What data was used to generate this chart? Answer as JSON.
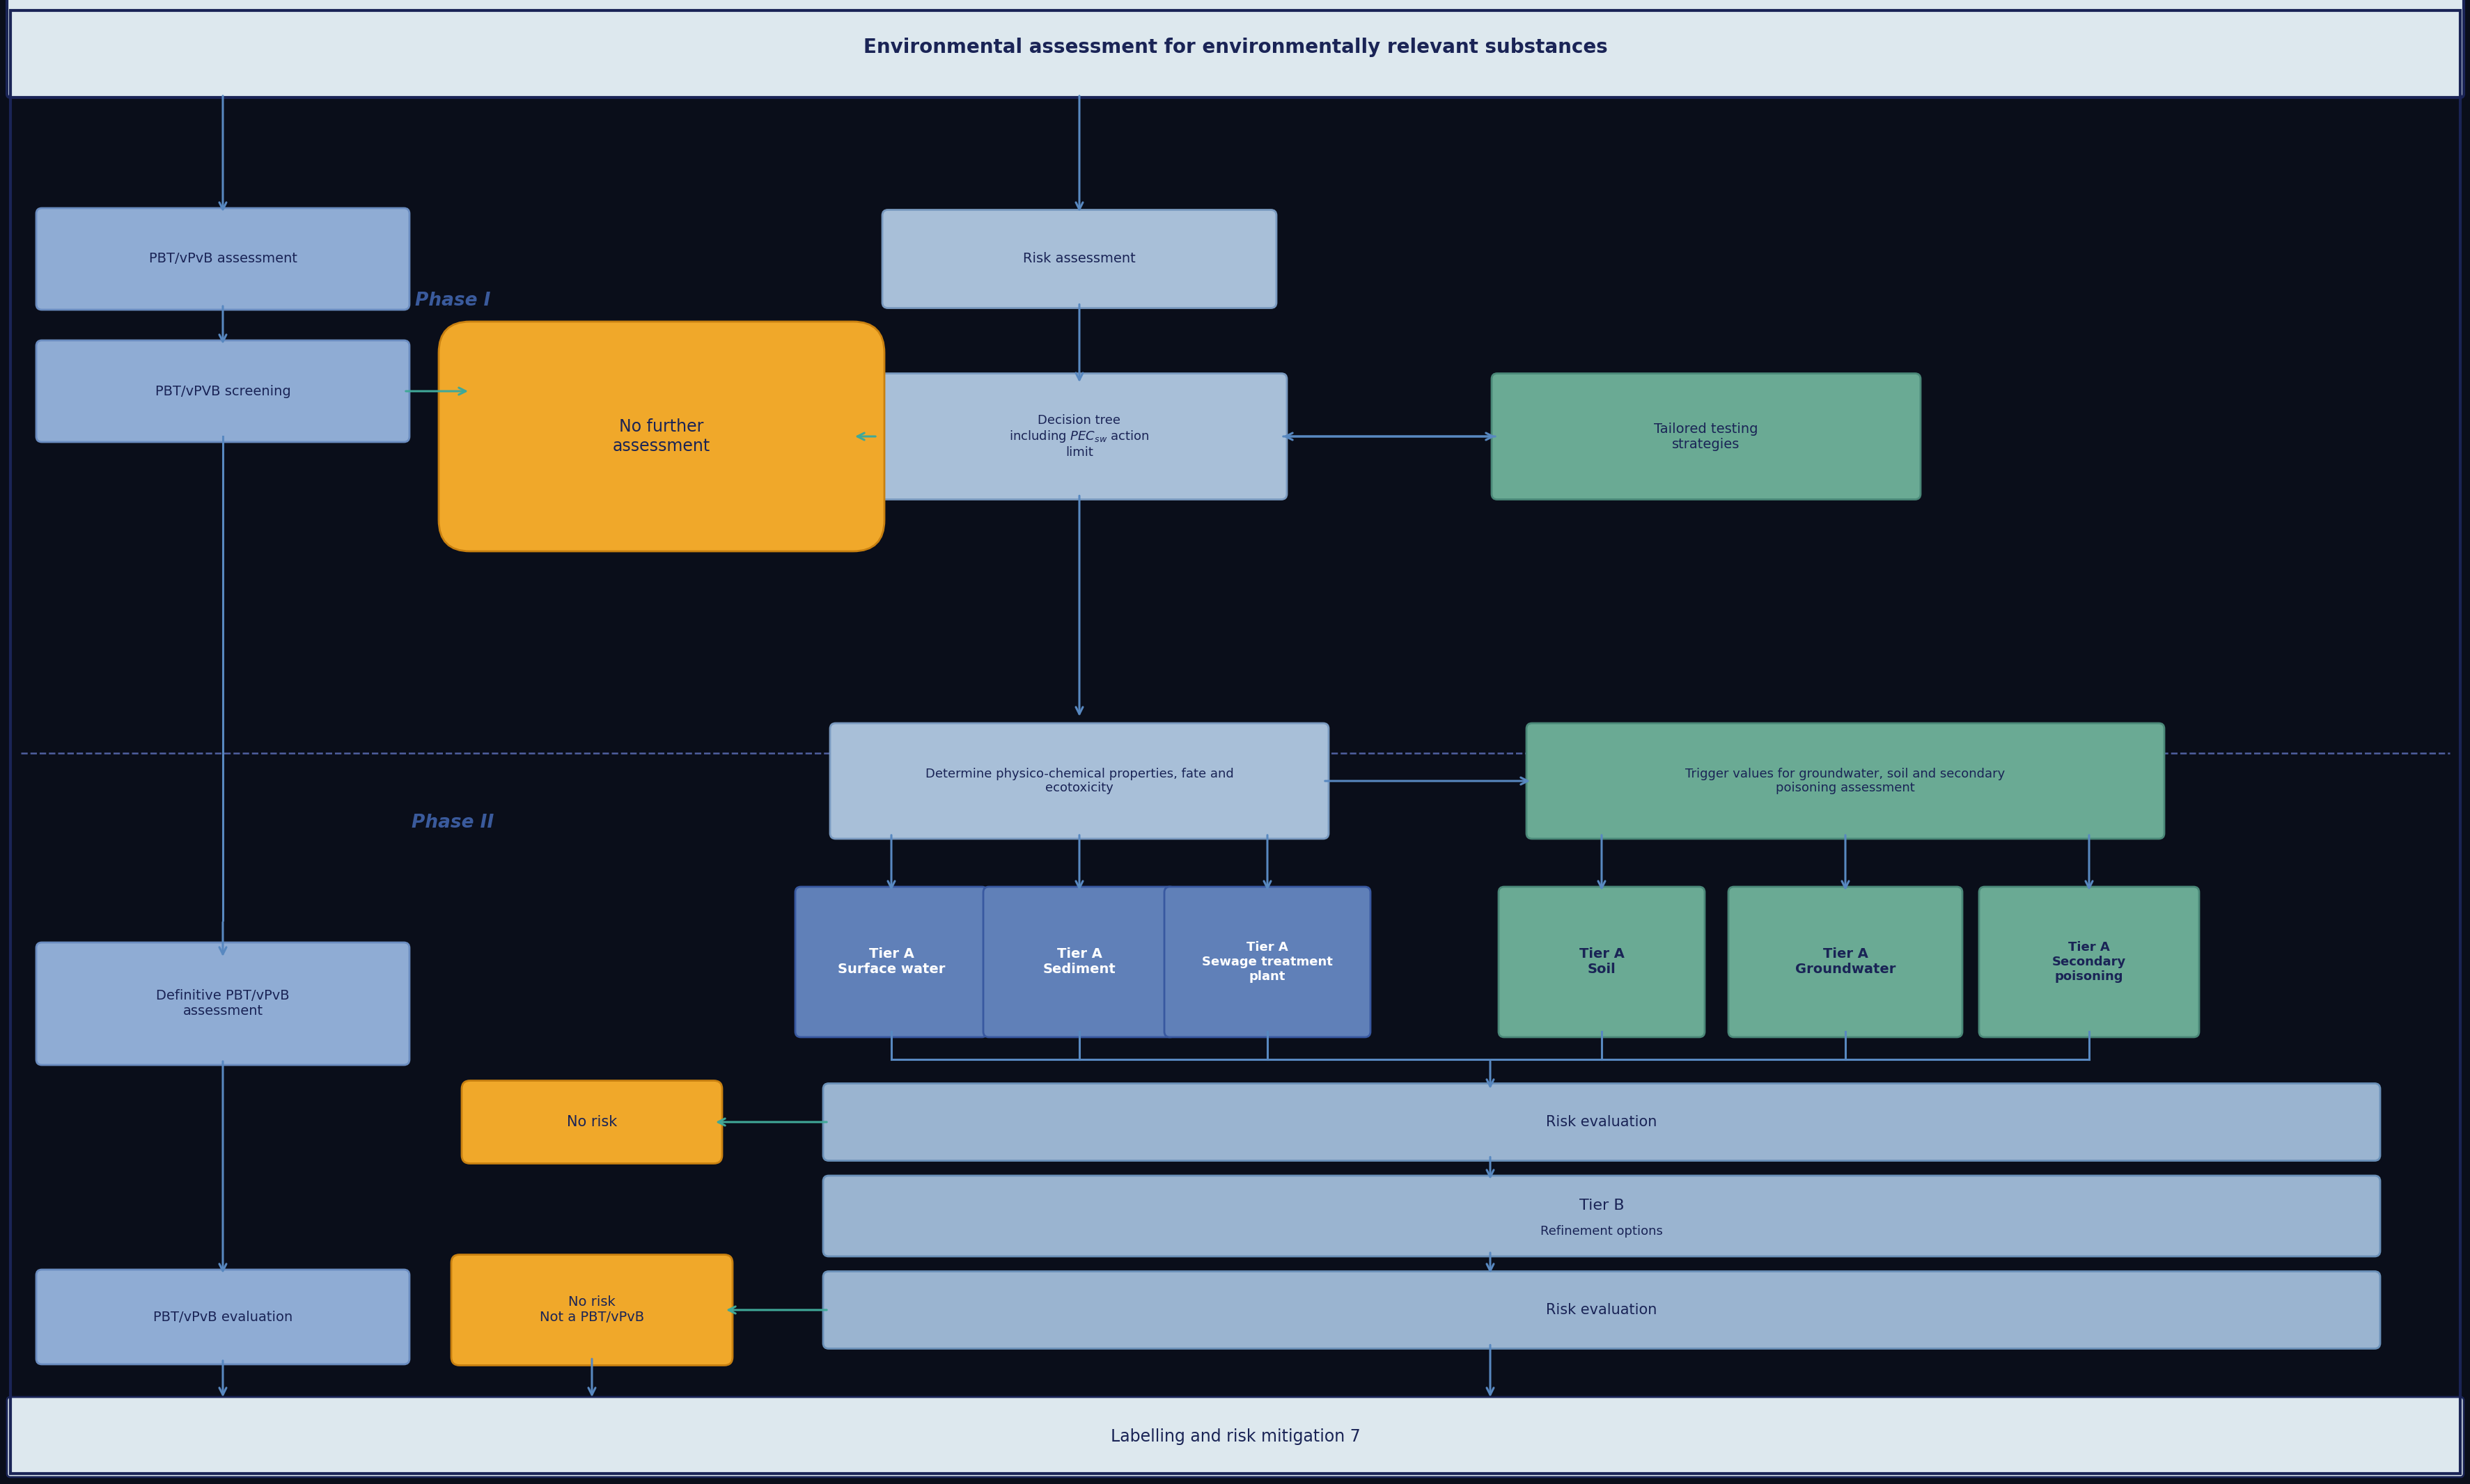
{
  "title": "Environmental assessment for environmentally relevant substances",
  "bottom_label": "Labelling and risk mitigation 7",
  "phase1_label": "Phase I",
  "phase2_label": "Phase II",
  "main_bg": "#0a0e1a",
  "header_bg": "#dde8ee",
  "header_text_color": "#1a2456",
  "phase_label_color": "#3a5a9c",
  "box_blue_fill": "#8facd4",
  "box_blue_border": "#6a8cc0",
  "box_blue_light_fill": "#a8bfd8",
  "box_blue_light_border": "#7a9ac0",
  "box_green_fill": "#6aaa94",
  "box_green_border": "#4a8878",
  "box_orange_fill": "#f0a82a",
  "box_orange_border": "#c88010",
  "box_tier_blue_fill": "#6080b8",
  "box_tier_blue_border": "#3858a0",
  "box_tier_green_fill": "#6aaa94",
  "box_tier_green_border": "#4a8878",
  "arrow_blue": "#5888c0",
  "arrow_green": "#40a898",
  "dashed_line_color": "#5060a0",
  "outer_border_color": "#1a2456",
  "text_dark": "#1a2456",
  "text_white": "#ffffff",
  "risk_eval_fill": "#9ab4d0",
  "risk_eval_border": "#6a90b8",
  "tier_b_fill": "#9ab4d0",
  "tier_b_border": "#6a90b8"
}
